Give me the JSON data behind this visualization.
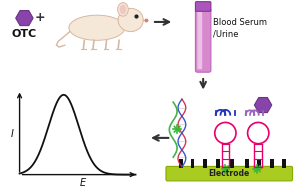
{
  "bg_color": "#ffffff",
  "otc_text": "OTC",
  "blood_serum_text": "Blood Serum\n/Urine",
  "electrode_text": "Electrode",
  "electrode_color": "#aacc22",
  "axis_label_I": "I",
  "axis_label_E": "E",
  "pink_color": "#e8006a",
  "blue_aptamer_color": "#2233bb",
  "green_star_color": "#33bb33",
  "purple_color": "#8844aa",
  "purple_dark": "#6c3483",
  "red_helix": "#cc2244",
  "blue_helix": "#2244cc",
  "green_wave": "#33aa33",
  "mouse_body_color": "#f5e8d8",
  "mouse_edge_color": "#d8b8a0",
  "tube_fill": "#d888cc",
  "tube_stripe": "#f0c0e0",
  "tube_cap": "#aa55bb",
  "arrow_color": "#333333",
  "figure_width": 3.01,
  "figure_height": 1.89,
  "dpi": 100
}
